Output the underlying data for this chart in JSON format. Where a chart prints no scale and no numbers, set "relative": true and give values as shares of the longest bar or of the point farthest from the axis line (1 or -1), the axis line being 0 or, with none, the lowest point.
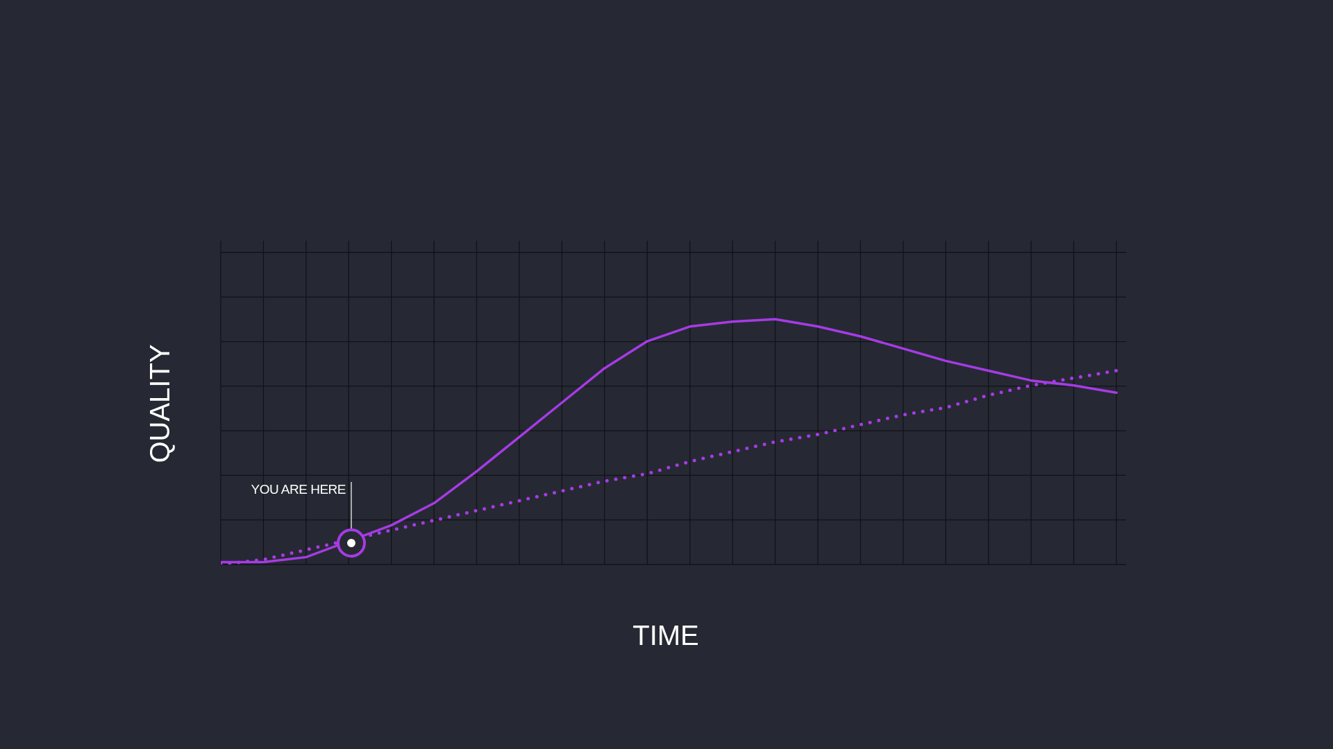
{
  "chart_data": {
    "type": "line",
    "relative": true,
    "xlabel": "TIME",
    "ylabel": "QUALITY",
    "grid": true,
    "categories": [
      null,
      null,
      null,
      null,
      null,
      null,
      null,
      null,
      null,
      null,
      null,
      null,
      null,
      null,
      null,
      null,
      null,
      null,
      null,
      null,
      null,
      null
    ],
    "annotations": [
      "YOU ARE HERE"
    ],
    "series": [
      {
        "color": "#a63be6",
        "line_style": "solid",
        "values": [
          0.01,
          0.01,
          0.03,
          null,
          0.16,
          0.25,
          0.38,
          0.52,
          0.66,
          0.8,
          0.91,
          0.97,
          0.99,
          1.0,
          0.97,
          0.93,
          0.88,
          0.83,
          0.79,
          0.75,
          0.73,
          0.7
        ]
      },
      {
        "color": "#a63be6",
        "line_style": "dotted",
        "values": [
          0,
          0.02,
          0.06,
          null,
          0.14,
          0.18,
          0.22,
          0.26,
          0.3,
          0.34,
          0.37,
          0.42,
          0.46,
          0.5,
          0.53,
          0.57,
          0.61,
          0.64,
          0.69,
          0.73,
          0.76,
          0.79
        ]
      }
    ]
  }
}
